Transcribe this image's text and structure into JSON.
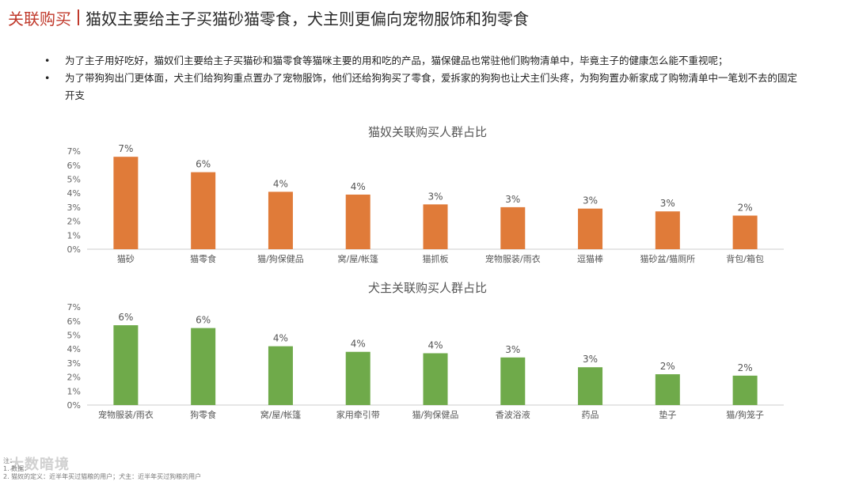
{
  "header": {
    "section": "关联购买",
    "title": "猫奴主要给主子买猫砂猫零食，犬主则更偏向宠物服饰和狗零食"
  },
  "bullets": [
    "为了主子用好吃好，猫奴们主要给主子买猫砂和猫零食等猫咪主要的用和吃的产品，猫保健品也常驻他们购物清单中，毕竟主子的健康怎么能不重视呢；",
    "为了带狗狗出门更体面，犬主们给狗狗重点置办了宠物服饰，他们还给狗狗买了零食，爱拆家的狗狗也让犬主们头疼，为狗狗置办新家成了购物清单中一笔划不去的固定开支"
  ],
  "colors": {
    "cat": "#E07B39",
    "dog": "#6FAA4A",
    "accent": "#C0392B"
  },
  "chart_data": [
    {
      "type": "bar",
      "title": "猫奴关联购买人群占比",
      "categories": [
        "猫砂",
        "猫零食",
        "猫/狗保健品",
        "窝/屋/帐篷",
        "猫抓板",
        "宠物服装/雨衣",
        "逗猫棒",
        "猫砂盆/猫厕所",
        "背包/箱包"
      ],
      "values": [
        6.6,
        5.5,
        4.1,
        3.9,
        3.2,
        3.0,
        2.9,
        2.7,
        2.4
      ],
      "data_labels": [
        "7%",
        "6%",
        "4%",
        "4%",
        "3%",
        "3%",
        "3%",
        "3%",
        "2%"
      ],
      "yticks": [
        "0%",
        "1%",
        "2%",
        "3%",
        "4%",
        "5%",
        "6%",
        "7%"
      ],
      "ylim": [
        0,
        7
      ],
      "grid": false
    },
    {
      "type": "bar",
      "title": "犬主关联购买人群占比",
      "categories": [
        "宠物服装/雨衣",
        "狗零食",
        "窝/屋/帐篷",
        "家用牵引带",
        "猫/狗保健品",
        "香波浴液",
        "药品",
        "垫子",
        "猫/狗笼子"
      ],
      "values": [
        5.7,
        5.5,
        4.2,
        3.8,
        3.7,
        3.4,
        2.7,
        2.2,
        2.1
      ],
      "data_labels": [
        "6%",
        "6%",
        "4%",
        "4%",
        "4%",
        "3%",
        "3%",
        "2%",
        "2%"
      ],
      "yticks": [
        "0%",
        "1%",
        "2%",
        "3%",
        "4%",
        "5%",
        "6%",
        "7%"
      ],
      "ylim": [
        0,
        7
      ],
      "grid": false
    }
  ],
  "footnote": {
    "lines": [
      "注：",
      "1. 数据：",
      "2. 猫奴的定义：近半年买过猫粮的用户；犬主：近半年买过狗粮的用户"
    ]
  },
  "watermark": "大数暗境"
}
